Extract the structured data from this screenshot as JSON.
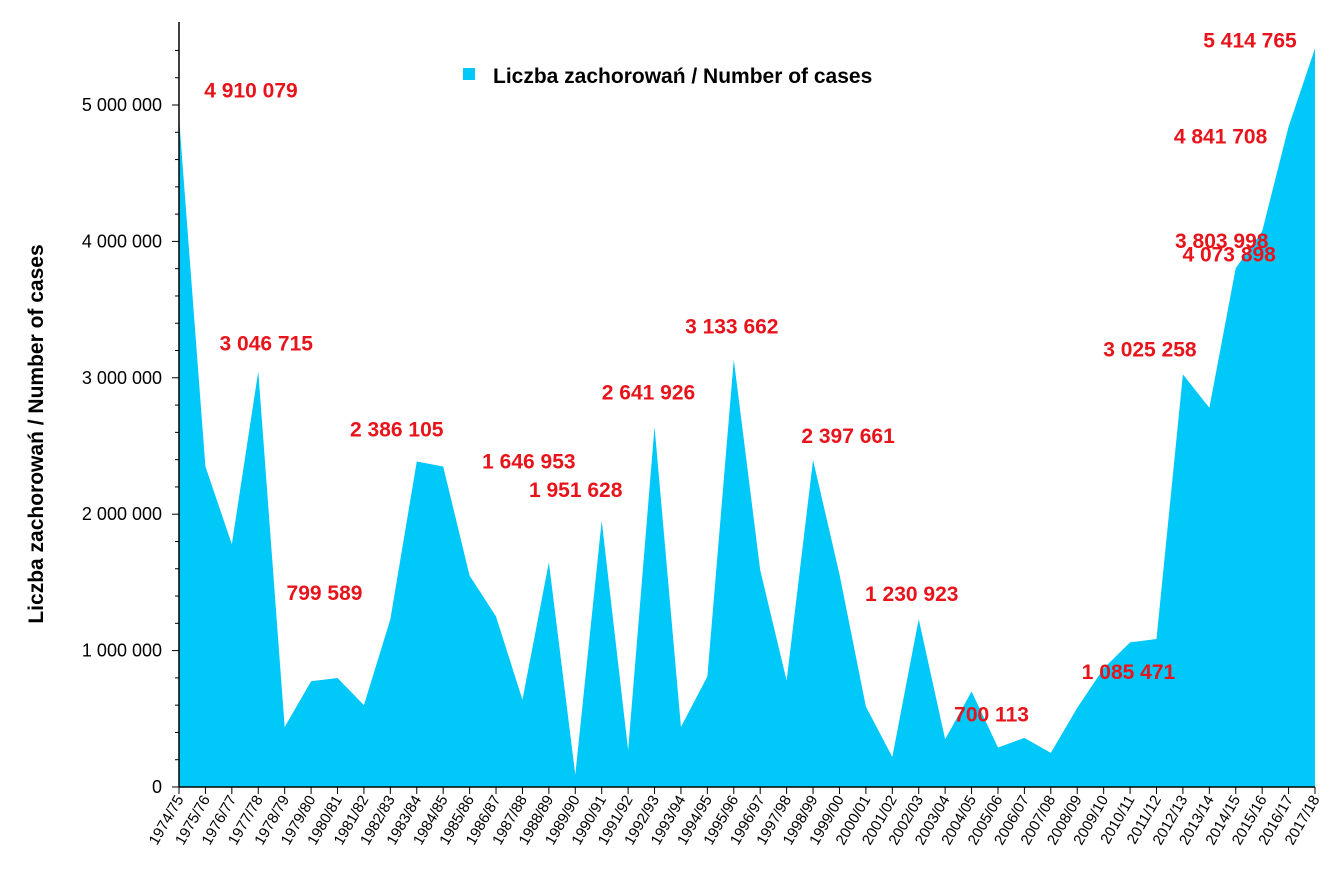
{
  "chart_data": {
    "type": "area",
    "title": "",
    "xlabel": "",
    "ylabel": "Liczba zachorowań  /  Number of cases",
    "ylim": [
      0,
      5600000
    ],
    "y_ticks": [
      0,
      1000000,
      2000000,
      3000000,
      4000000,
      5000000
    ],
    "y_tick_labels": [
      "0",
      "1 000 000",
      "2 000 000",
      "3 000 000",
      "4 000 000",
      "5 000 000"
    ],
    "grid": false,
    "legend_position": "top-center",
    "area_color": "#00c8f8",
    "annotation_color": "#e8141b",
    "categories": [
      "1974/75",
      "1975/76",
      "1976/77",
      "1977/78",
      "1978/79",
      "1979/80",
      "1980/81",
      "1981/82",
      "1982/83",
      "1983/84",
      "1984/85",
      "1985/86",
      "1986/87",
      "1987/88",
      "1988/89",
      "1989/90",
      "1990/91",
      "1991/92",
      "1992/93",
      "1993/94",
      "1994/95",
      "1995/96",
      "1996/97",
      "1997/98",
      "1998/99",
      "1999/00",
      "2000/01",
      "2001/02",
      "2002/03",
      "2003/04",
      "2004/05",
      "2005/06",
      "2006/07",
      "2007/08",
      "2008/09",
      "2009/10",
      "2010/11",
      "2011/12",
      "2012/13",
      "2013/14",
      "2014/15",
      "2015/16",
      "2016/17",
      "2017/18"
    ],
    "series": [
      {
        "name": "Liczba zachorowań / Number of cases",
        "values": [
          4910079,
          2350000,
          1780000,
          3046715,
          440000,
          775000,
          799589,
          600000,
          1230000,
          2386105,
          2350000,
          1550000,
          1250000,
          640000,
          1646953,
          90000,
          1951628,
          270000,
          2641926,
          440000,
          810000,
          3133662,
          1590000,
          780000,
          2397661,
          1560000,
          590000,
          220000,
          1230923,
          350000,
          700113,
          290000,
          360000,
          250000,
          580000,
          870000,
          1060000,
          1085471,
          3025258,
          2780000,
          3803998,
          4073898,
          4841708,
          5414765
        ]
      }
    ],
    "annotations": [
      {
        "text": "4 910 079",
        "index": 0
      },
      {
        "text": "3 046 715",
        "index": 3
      },
      {
        "text": "799 589",
        "index": 6
      },
      {
        "text": "2 386 105",
        "index": 9
      },
      {
        "text": "1 646 953",
        "index": 14
      },
      {
        "text": "1 951 628",
        "index": 16
      },
      {
        "text": "2 641 926",
        "index": 18
      },
      {
        "text": "3 133 662",
        "index": 21
      },
      {
        "text": "2 397 661",
        "index": 24
      },
      {
        "text": "1 230 923",
        "index": 28
      },
      {
        "text": "700 113",
        "index": 30
      },
      {
        "text": "1 085 471",
        "index": 37
      },
      {
        "text": "3 025 258",
        "index": 38
      },
      {
        "text": "3 803 998",
        "index": 40
      },
      {
        "text": "4 073 898",
        "index": 41
      },
      {
        "text": "4 841 708",
        "index": 42
      },
      {
        "text": "5 414 765",
        "index": 43
      }
    ]
  }
}
